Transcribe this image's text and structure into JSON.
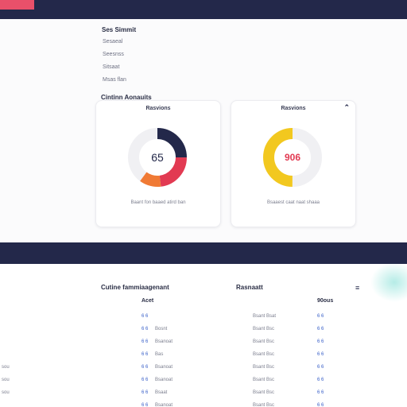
{
  "colors": {
    "navy": "#23284a",
    "accent": "#e9506a",
    "orange": "#f07a35",
    "red": "#e23a52",
    "yellow": "#f2c81f",
    "link": "#3b61c9"
  },
  "nav": {
    "title": "Ses Simmit",
    "items": [
      "Sesaeal",
      "Seesnss",
      "Sitsaat",
      "Msas flan"
    ]
  },
  "section": {
    "title": "Cintinn Aonauits"
  },
  "cards": [
    {
      "title": "Rasvions",
      "value": "65",
      "caption": "Baant fon baaed atird ban",
      "chart_data": {
        "type": "pie",
        "segments": [
          {
            "value": 25,
            "color": "#23284a"
          },
          {
            "value": 23,
            "color": "#e23a52"
          },
          {
            "value": 12,
            "color": "#f07a35"
          },
          {
            "value": 40,
            "color": "#f0f0f3"
          }
        ]
      }
    },
    {
      "title": "Rasvions",
      "value": "906",
      "caption": "Bsaaest caat naat shaaa",
      "icon": "chevron-up-icon",
      "chart_data": {
        "type": "pie",
        "segments": [
          {
            "value": 50,
            "color": "#f0f0f3"
          },
          {
            "value": 50,
            "color": "#f2c81f"
          }
        ]
      }
    }
  ],
  "table": {
    "headers": {
      "left": "Cutine fammiaagenant",
      "right": "Rasnaatt"
    },
    "subheaders": {
      "left": "Acet",
      "right": "90ous"
    },
    "menu_icon": "menu-icon",
    "row_labels": [
      "",
      "",
      "",
      "",
      "sou",
      "sou",
      "sou",
      ""
    ],
    "rows": [
      {
        "c1": "6 6",
        "c2": "",
        "c3": "Bsant Bsat",
        "c4": "6 6"
      },
      {
        "c1": "6 6",
        "c2": "Bosnt",
        "c3": "Bsant Bsc",
        "c4": "6 6"
      },
      {
        "c1": "6 6",
        "c2": "Bsanoat",
        "c3": "Bsant Bsc",
        "c4": "6 6"
      },
      {
        "c1": "6 6",
        "c2": "Bas",
        "c3": "Bsant Bsc",
        "c4": "6 6"
      },
      {
        "c1": "6 6",
        "c2": "Bsanoat",
        "c3": "Bsant Bsc",
        "c4": "6 6"
      },
      {
        "c1": "6 6",
        "c2": "Bsanoat",
        "c3": "Bsant Bsc",
        "c4": "6 6"
      },
      {
        "c1": "6 6",
        "c2": "Bsaat",
        "c3": "Bsant Bsc",
        "c4": "6 6"
      },
      {
        "c1": "6 6",
        "c2": "Bsanoat",
        "c3": "Bsant Bsc",
        "c4": "6 6"
      }
    ]
  }
}
